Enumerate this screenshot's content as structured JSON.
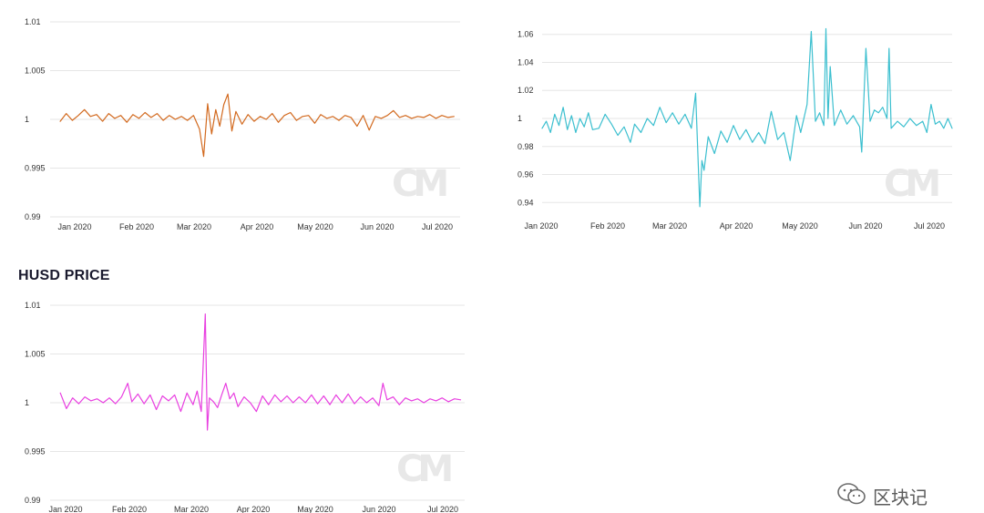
{
  "panels": [
    {
      "title": ""
    },
    {
      "title": ""
    },
    {
      "title": "HUSD PRICE"
    }
  ],
  "brand": {
    "text": "区块记",
    "icon": "wechat-icon"
  },
  "watermark": "CM",
  "chart_data": [
    {
      "type": "line",
      "title": "",
      "color": "#d2691e",
      "x_ticks": [
        "Jan 2020",
        "Feb 2020",
        "Mar 2020",
        "Apr 2020",
        "May 2020",
        "Jun 2020",
        "Jul 2020"
      ],
      "y_ticks": [
        "0.99",
        "0.995",
        "1",
        "1.005",
        "1.01"
      ],
      "ylim": [
        0.99,
        1.01
      ],
      "xlim": [
        "2019-12-27",
        "2020-07-17"
      ],
      "series": [
        {
          "values": [
            [
              "2020-01-01",
              0.9998
            ],
            [
              "2020-01-04",
              1.0006
            ],
            [
              "2020-01-07",
              0.9999
            ],
            [
              "2020-01-10",
              1.0004
            ],
            [
              "2020-01-13",
              1.001
            ],
            [
              "2020-01-16",
              1.0003
            ],
            [
              "2020-01-19",
              1.0005
            ],
            [
              "2020-01-22",
              0.9998
            ],
            [
              "2020-01-25",
              1.0006
            ],
            [
              "2020-01-28",
              1.0001
            ],
            [
              "2020-01-31",
              1.0004
            ],
            [
              "2020-02-03",
              0.9997
            ],
            [
              "2020-02-06",
              1.0005
            ],
            [
              "2020-02-09",
              1.0001
            ],
            [
              "2020-02-12",
              1.0007
            ],
            [
              "2020-02-15",
              1.0002
            ],
            [
              "2020-02-18",
              1.0006
            ],
            [
              "2020-02-21",
              0.9999
            ],
            [
              "2020-02-24",
              1.0004
            ],
            [
              "2020-02-27",
              1.0
            ],
            [
              "2020-03-01",
              1.0003
            ],
            [
              "2020-03-04",
              0.9999
            ],
            [
              "2020-03-07",
              1.0004
            ],
            [
              "2020-03-10",
              0.999
            ],
            [
              "2020-03-12",
              0.9962
            ],
            [
              "2020-03-14",
              1.0016
            ],
            [
              "2020-03-16",
              0.9985
            ],
            [
              "2020-03-18",
              1.001
            ],
            [
              "2020-03-20",
              0.9993
            ],
            [
              "2020-03-22",
              1.0015
            ],
            [
              "2020-03-24",
              1.0026
            ],
            [
              "2020-03-26",
              0.9988
            ],
            [
              "2020-03-28",
              1.0008
            ],
            [
              "2020-03-31",
              0.9995
            ],
            [
              "2020-04-03",
              1.0005
            ],
            [
              "2020-04-06",
              0.9998
            ],
            [
              "2020-04-09",
              1.0003
            ],
            [
              "2020-04-12",
              1.0
            ],
            [
              "2020-04-15",
              1.0006
            ],
            [
              "2020-04-18",
              0.9997
            ],
            [
              "2020-04-21",
              1.0004
            ],
            [
              "2020-04-24",
              1.0007
            ],
            [
              "2020-04-27",
              0.9999
            ],
            [
              "2020-04-30",
              1.0003
            ],
            [
              "2020-05-03",
              1.0004
            ],
            [
              "2020-05-06",
              0.9996
            ],
            [
              "2020-05-09",
              1.0005
            ],
            [
              "2020-05-12",
              1.0001
            ],
            [
              "2020-05-15",
              1.0003
            ],
            [
              "2020-05-18",
              0.9999
            ],
            [
              "2020-05-21",
              1.0004
            ],
            [
              "2020-05-24",
              1.0002
            ],
            [
              "2020-05-27",
              0.9993
            ],
            [
              "2020-05-30",
              1.0004
            ],
            [
              "2020-06-02",
              0.9989
            ],
            [
              "2020-06-05",
              1.0003
            ],
            [
              "2020-06-08",
              1.0001
            ],
            [
              "2020-06-11",
              1.0004
            ],
            [
              "2020-06-14",
              1.0009
            ],
            [
              "2020-06-17",
              1.0002
            ],
            [
              "2020-06-20",
              1.0004
            ],
            [
              "2020-06-23",
              1.0001
            ],
            [
              "2020-06-26",
              1.0003
            ],
            [
              "2020-06-29",
              1.0002
            ],
            [
              "2020-07-02",
              1.0005
            ],
            [
              "2020-07-05",
              1.0001
            ],
            [
              "2020-07-08",
              1.0004
            ],
            [
              "2020-07-11",
              1.0002
            ],
            [
              "2020-07-14",
              1.0003
            ]
          ]
        }
      ]
    },
    {
      "type": "line",
      "title": "",
      "color": "#3bbfcf",
      "x_ticks": [
        "Jan 2020",
        "Feb 2020",
        "Mar 2020",
        "Apr 2020",
        "May 2020",
        "Jun 2020",
        "Jul 2020"
      ],
      "y_ticks": [
        "0.94",
        "0.96",
        "0.98",
        "1",
        "1.02",
        "1.04",
        "1.06"
      ],
      "ylim": [
        0.935,
        1.065
      ],
      "xlim": [
        "2020-01-01",
        "2020-07-14"
      ],
      "series": [
        {
          "values": [
            [
              "2020-01-01",
              0.993
            ],
            [
              "2020-01-03",
              0.998
            ],
            [
              "2020-01-05",
              0.99
            ],
            [
              "2020-01-07",
              1.003
            ],
            [
              "2020-01-09",
              0.995
            ],
            [
              "2020-01-11",
              1.008
            ],
            [
              "2020-01-13",
              0.992
            ],
            [
              "2020-01-15",
              1.002
            ],
            [
              "2020-01-17",
              0.99
            ],
            [
              "2020-01-19",
              1.0
            ],
            [
              "2020-01-21",
              0.994
            ],
            [
              "2020-01-23",
              1.004
            ],
            [
              "2020-01-25",
              0.992
            ],
            [
              "2020-01-28",
              0.993
            ],
            [
              "2020-01-31",
              1.003
            ],
            [
              "2020-02-03",
              0.996
            ],
            [
              "2020-02-06",
              0.988
            ],
            [
              "2020-02-09",
              0.994
            ],
            [
              "2020-02-12",
              0.983
            ],
            [
              "2020-02-14",
              0.996
            ],
            [
              "2020-02-17",
              0.99
            ],
            [
              "2020-02-20",
              1.0
            ],
            [
              "2020-02-23",
              0.995
            ],
            [
              "2020-02-26",
              1.008
            ],
            [
              "2020-02-29",
              0.997
            ],
            [
              "2020-03-03",
              1.004
            ],
            [
              "2020-03-06",
              0.996
            ],
            [
              "2020-03-09",
              1.003
            ],
            [
              "2020-03-12",
              0.993
            ],
            [
              "2020-03-14",
              1.018
            ],
            [
              "2020-03-16",
              0.937
            ],
            [
              "2020-03-17",
              0.97
            ],
            [
              "2020-03-18",
              0.963
            ],
            [
              "2020-03-20",
              0.987
            ],
            [
              "2020-03-23",
              0.975
            ],
            [
              "2020-03-26",
              0.991
            ],
            [
              "2020-03-29",
              0.983
            ],
            [
              "2020-04-01",
              0.995
            ],
            [
              "2020-04-04",
              0.985
            ],
            [
              "2020-04-07",
              0.992
            ],
            [
              "2020-04-10",
              0.983
            ],
            [
              "2020-04-13",
              0.99
            ],
            [
              "2020-04-16",
              0.982
            ],
            [
              "2020-04-19",
              1.005
            ],
            [
              "2020-04-22",
              0.985
            ],
            [
              "2020-04-25",
              0.99
            ],
            [
              "2020-04-28",
              0.97
            ],
            [
              "2020-05-01",
              1.002
            ],
            [
              "2020-05-03",
              0.99
            ],
            [
              "2020-05-06",
              1.01
            ],
            [
              "2020-05-08",
              1.062
            ],
            [
              "2020-05-10",
              0.998
            ],
            [
              "2020-05-12",
              1.004
            ],
            [
              "2020-05-14",
              0.995
            ],
            [
              "2020-05-15",
              1.064
            ],
            [
              "2020-05-16",
              1.0
            ],
            [
              "2020-05-17",
              1.037
            ],
            [
              "2020-05-19",
              0.995
            ],
            [
              "2020-05-22",
              1.006
            ],
            [
              "2020-05-25",
              0.996
            ],
            [
              "2020-05-28",
              1.002
            ],
            [
              "2020-05-31",
              0.994
            ],
            [
              "2020-06-01",
              0.976
            ],
            [
              "2020-06-03",
              1.05
            ],
            [
              "2020-06-05",
              0.998
            ],
            [
              "2020-06-07",
              1.006
            ],
            [
              "2020-06-09",
              1.004
            ],
            [
              "2020-06-11",
              1.008
            ],
            [
              "2020-06-13",
              1.0
            ],
            [
              "2020-06-14",
              1.05
            ],
            [
              "2020-06-15",
              0.993
            ],
            [
              "2020-06-18",
              0.998
            ],
            [
              "2020-06-21",
              0.994
            ],
            [
              "2020-06-24",
              1.0
            ],
            [
              "2020-06-27",
              0.995
            ],
            [
              "2020-06-30",
              0.998
            ],
            [
              "2020-07-02",
              0.99
            ],
            [
              "2020-07-04",
              1.01
            ],
            [
              "2020-07-06",
              0.996
            ],
            [
              "2020-07-08",
              0.998
            ],
            [
              "2020-07-10",
              0.993
            ],
            [
              "2020-07-12",
              1.0
            ],
            [
              "2020-07-14",
              0.993
            ]
          ]
        }
      ]
    },
    {
      "type": "line",
      "title": "HUSD PRICE",
      "color": "#e83fe0",
      "x_ticks": [
        "Jan 2020",
        "Feb 2020",
        "Mar 2020",
        "Apr 2020",
        "May 2020",
        "Jun 2020",
        "Jul 2020"
      ],
      "y_ticks": [
        "0.99",
        "0.995",
        "1",
        "1.005",
        "1.01"
      ],
      "ylim": [
        0.99,
        1.01
      ],
      "xlim": [
        "2019-12-27",
        "2020-07-17"
      ],
      "series": [
        {
          "values": [
            [
              "2020-01-01",
              1.001
            ],
            [
              "2020-01-04",
              0.9994
            ],
            [
              "2020-01-07",
              1.0005
            ],
            [
              "2020-01-10",
              0.9999
            ],
            [
              "2020-01-13",
              1.0006
            ],
            [
              "2020-01-16",
              1.0002
            ],
            [
              "2020-01-19",
              1.0004
            ],
            [
              "2020-01-22",
              1.0
            ],
            [
              "2020-01-25",
              1.0005
            ],
            [
              "2020-01-28",
              0.9999
            ],
            [
              "2020-01-31",
              1.0006
            ],
            [
              "2020-02-03",
              1.002
            ],
            [
              "2020-02-05",
              1.0001
            ],
            [
              "2020-02-08",
              1.0009
            ],
            [
              "2020-02-11",
              0.9999
            ],
            [
              "2020-02-14",
              1.0008
            ],
            [
              "2020-02-17",
              0.9993
            ],
            [
              "2020-02-20",
              1.0007
            ],
            [
              "2020-02-23",
              1.0002
            ],
            [
              "2020-02-26",
              1.0008
            ],
            [
              "2020-02-29",
              0.9991
            ],
            [
              "2020-03-03",
              1.001
            ],
            [
              "2020-03-06",
              0.9998
            ],
            [
              "2020-03-08",
              1.0012
            ],
            [
              "2020-03-10",
              0.9991
            ],
            [
              "2020-03-12",
              1.0091
            ],
            [
              "2020-03-13",
              0.9972
            ],
            [
              "2020-03-14",
              1.0005
            ],
            [
              "2020-03-16",
              1.0001
            ],
            [
              "2020-03-18",
              0.9995
            ],
            [
              "2020-03-20",
              1.0008
            ],
            [
              "2020-03-22",
              1.002
            ],
            [
              "2020-03-24",
              1.0004
            ],
            [
              "2020-03-26",
              1.001
            ],
            [
              "2020-03-28",
              0.9996
            ],
            [
              "2020-03-31",
              1.0006
            ],
            [
              "2020-04-03",
              1.0
            ],
            [
              "2020-04-06",
              0.9991
            ],
            [
              "2020-04-09",
              1.0007
            ],
            [
              "2020-04-12",
              0.9998
            ],
            [
              "2020-04-15",
              1.0008
            ],
            [
              "2020-04-18",
              1.0001
            ],
            [
              "2020-04-21",
              1.0007
            ],
            [
              "2020-04-24",
              1.0
            ],
            [
              "2020-04-27",
              1.0006
            ],
            [
              "2020-04-30",
              1.0
            ],
            [
              "2020-05-03",
              1.0008
            ],
            [
              "2020-05-06",
              0.9999
            ],
            [
              "2020-05-09",
              1.0007
            ],
            [
              "2020-05-12",
              0.9998
            ],
            [
              "2020-05-15",
              1.0008
            ],
            [
              "2020-05-18",
              1.0
            ],
            [
              "2020-05-21",
              1.0009
            ],
            [
              "2020-05-24",
              0.9999
            ],
            [
              "2020-05-27",
              1.0006
            ],
            [
              "2020-05-30",
              1.0
            ],
            [
              "2020-06-02",
              1.0005
            ],
            [
              "2020-06-05",
              0.9997
            ],
            [
              "2020-06-07",
              1.002
            ],
            [
              "2020-06-09",
              1.0003
            ],
            [
              "2020-06-12",
              1.0006
            ],
            [
              "2020-06-15",
              0.9998
            ],
            [
              "2020-06-18",
              1.0005
            ],
            [
              "2020-06-21",
              1.0002
            ],
            [
              "2020-06-24",
              1.0004
            ],
            [
              "2020-06-27",
              1.0
            ],
            [
              "2020-06-30",
              1.0004
            ],
            [
              "2020-07-03",
              1.0002
            ],
            [
              "2020-07-06",
              1.0005
            ],
            [
              "2020-07-09",
              1.0001
            ],
            [
              "2020-07-12",
              1.0004
            ],
            [
              "2020-07-15",
              1.0003
            ]
          ]
        }
      ]
    }
  ]
}
